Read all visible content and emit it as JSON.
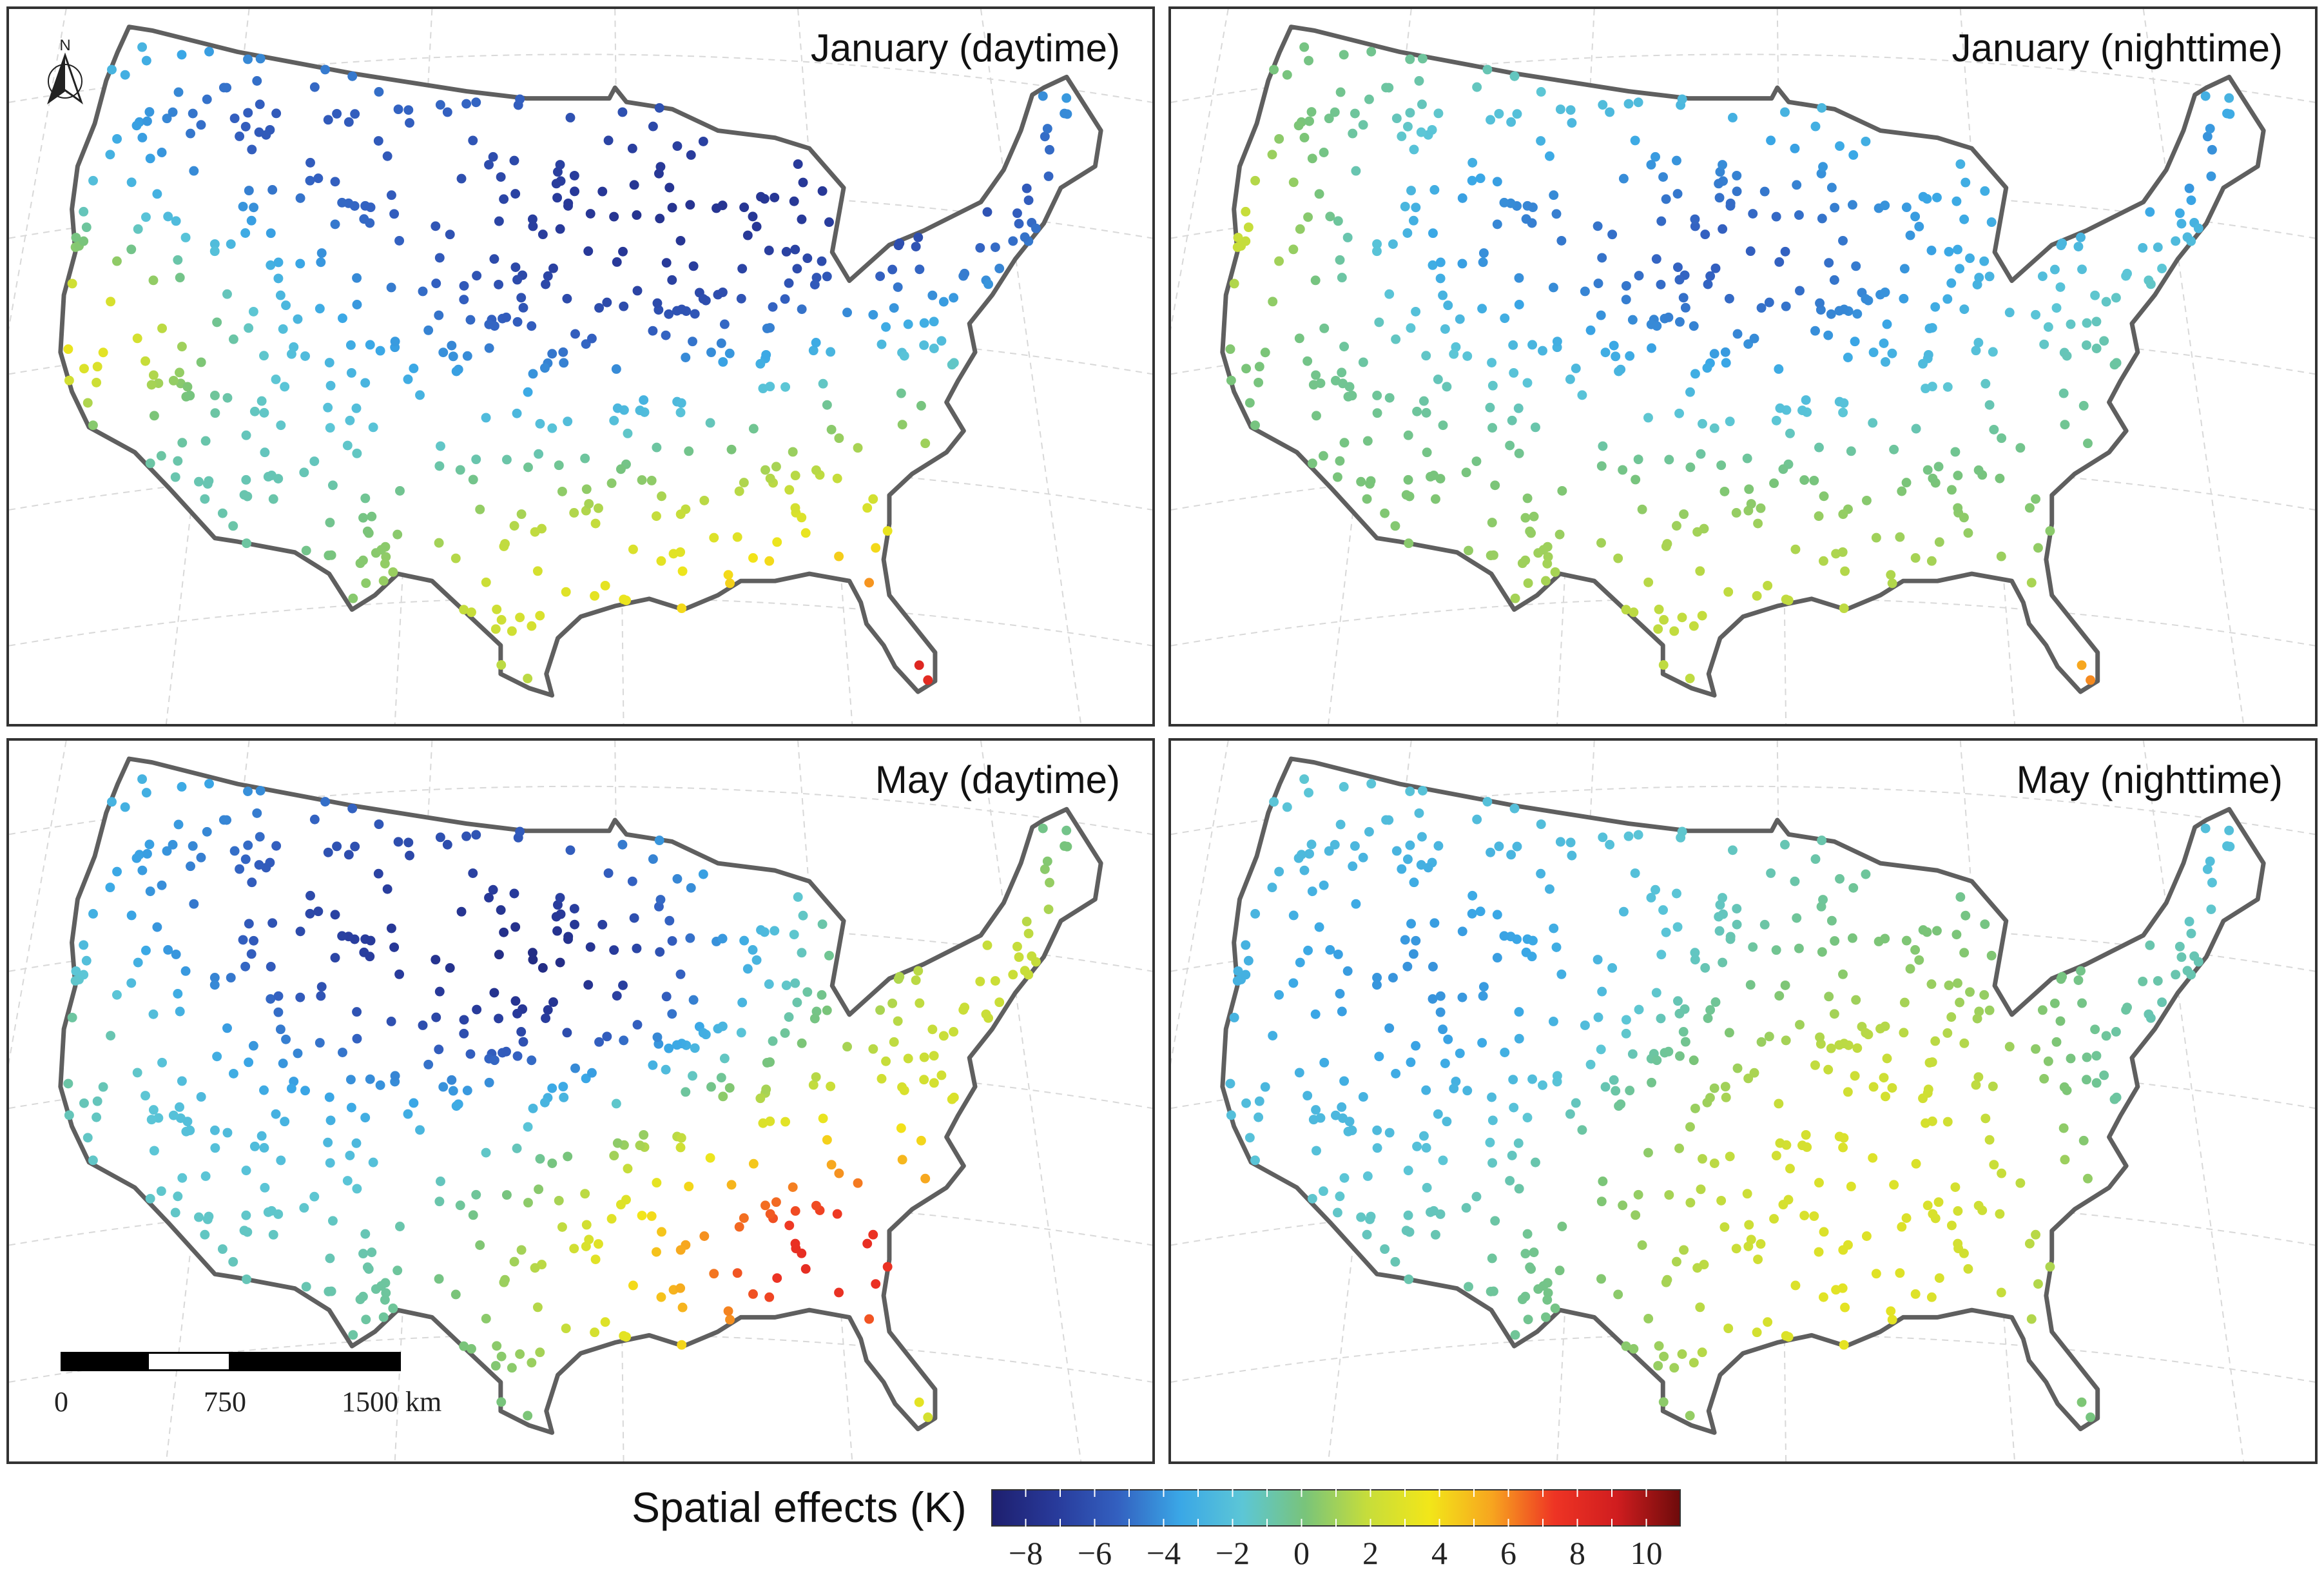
{
  "panels": [
    {
      "title": "January (daytime)"
    },
    {
      "title": "January (nighttime)"
    },
    {
      "title": "May (daytime)"
    },
    {
      "title": "May (nighttime)"
    }
  ],
  "north_arrow": {
    "label": "N",
    "icon": "north-arrow-icon"
  },
  "scale_bar": {
    "labels": [
      "0",
      "750",
      "1500 km"
    ]
  },
  "legend": {
    "title": "Spatial effects (K)",
    "ticks": [
      "−8",
      "−6",
      "−4",
      "−2",
      "0",
      "2",
      "4",
      "6",
      "8",
      "10"
    ],
    "range": [
      -9,
      11
    ],
    "colors": [
      "#1e1f6e",
      "#283a9a",
      "#3360c0",
      "#3aa7e6",
      "#5cc6d6",
      "#79c47a",
      "#c6dd3b",
      "#f2e619",
      "#f7a51f",
      "#ee3424",
      "#d01d1f",
      "#6e0b0b"
    ]
  },
  "colors": {
    "border": "#5f5f5f",
    "frame": "#333333"
  }
}
